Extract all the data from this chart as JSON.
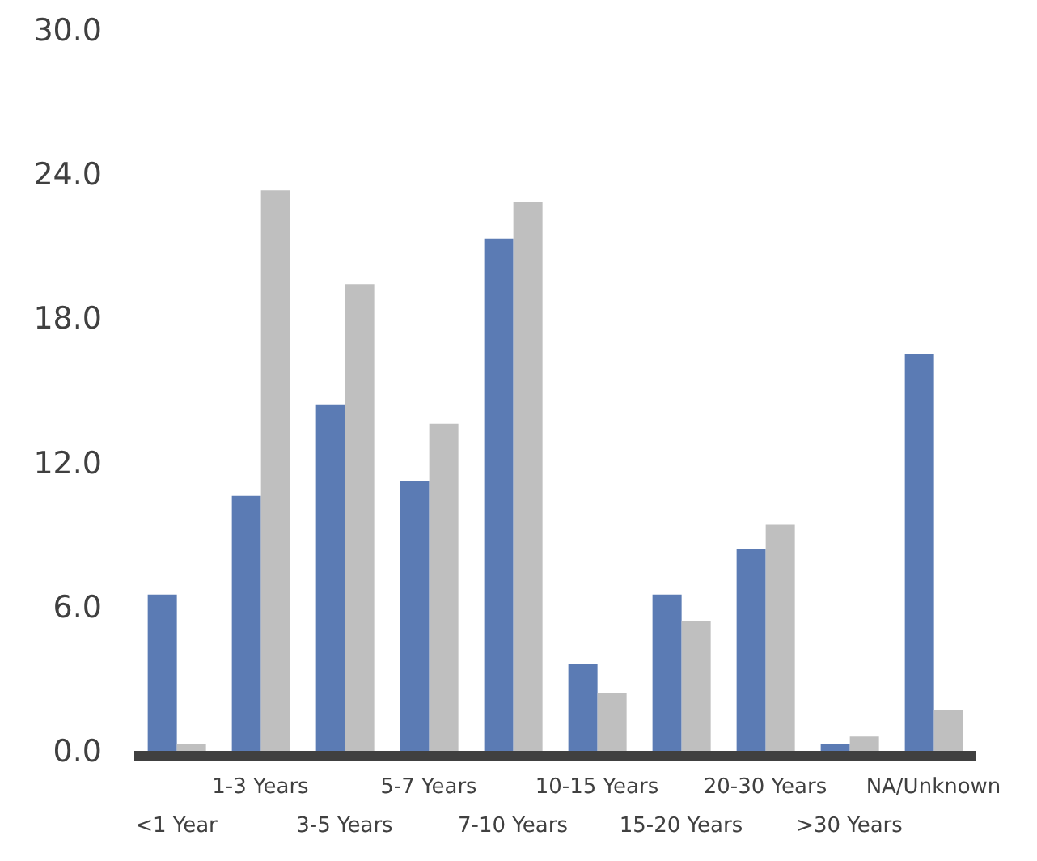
{
  "chart_data": {
    "type": "bar",
    "categories": [
      "<1 Year",
      "1-3 Years",
      "3-5 Years",
      "5-7 Years",
      "7-10 Years",
      "10-15 Years",
      "15-20 Years",
      "20-30 Years",
      ">30 Years",
      "NA/Unknown"
    ],
    "series": [
      {
        "color": "#5b7bb4",
        "values": [
          6.5,
          10.6,
          14.4,
          11.2,
          21.3,
          3.6,
          6.5,
          8.4,
          0.3,
          16.5
        ]
      },
      {
        "color": "#bfbfbf",
        "values": [
          0.3,
          23.3,
          19.4,
          13.6,
          22.8,
          2.4,
          5.4,
          9.4,
          0.6,
          1.7
        ]
      }
    ],
    "ylim": [
      0,
      30
    ],
    "yticks": [
      {
        "value": 0,
        "label": "0.0"
      },
      {
        "value": 6,
        "label": "6.0"
      },
      {
        "value": 12,
        "label": "12.0"
      },
      {
        "value": 18,
        "label": "18.0"
      },
      {
        "value": 24,
        "label": "24.0"
      },
      {
        "value": 30,
        "label": "30.0"
      }
    ],
    "grid": false,
    "legend": false
  }
}
